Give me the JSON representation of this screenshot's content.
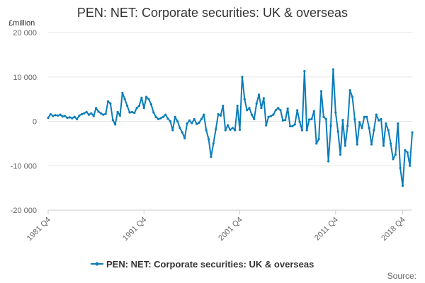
{
  "chart_data": {
    "type": "line",
    "title": "PEN: NET: Corporate securities: UK & overseas",
    "unit_label": "£million",
    "ylim": [
      -20000,
      20000
    ],
    "y_ticks": [
      20000,
      10000,
      0,
      -10000,
      -20000
    ],
    "y_tick_labels": [
      "20 000",
      "10 000",
      "0",
      "-10 000",
      "-20 000"
    ],
    "x_tick_labels": [
      "1981 Q4",
      "1991 Q4",
      "2001 Q4",
      "2011 Q4",
      "2018 Q4"
    ],
    "x_tick_index": [
      0,
      40,
      80,
      120,
      148
    ],
    "grid": "horizontal",
    "legend_position": "bottom",
    "credit": "Source:",
    "series": [
      {
        "name": "PEN: NET: Corporate securities: UK & overseas",
        "color": "#0a7cb9",
        "values": [
          800,
          1600,
          1200,
          1400,
          1300,
          1500,
          1100,
          1200,
          800,
          900,
          700,
          1000,
          500,
          1300,
          1600,
          1800,
          2100,
          1500,
          1800,
          1200,
          3000,
          2200,
          1800,
          1500,
          1700,
          4500,
          4000,
          300,
          -700,
          2100,
          1300,
          6400,
          5000,
          3500,
          2000,
          2100,
          1900,
          3000,
          3500,
          5300,
          3000,
          5500,
          5000,
          3800,
          2000,
          1000,
          500,
          700,
          1000,
          1500,
          600,
          0,
          -2000,
          1000,
          0,
          -1500,
          -2500,
          -3800,
          -500,
          200,
          -400,
          500,
          -600,
          -300,
          500,
          1500,
          -2000,
          -4000,
          -8000,
          -5000,
          -1800,
          1600,
          1300,
          3500,
          -2000,
          -900,
          -1900,
          -1500,
          -2000,
          3500,
          -1900,
          10000,
          5000,
          2500,
          3000,
          1500,
          500,
          4000,
          6000,
          3000,
          5200,
          -900,
          1000,
          1200,
          1500,
          2500,
          3000,
          2500,
          200,
          300,
          2900,
          -1100,
          -1100,
          -700,
          2500,
          -100,
          -2000,
          11300,
          -2000,
          400,
          500,
          2300,
          -5000,
          -4000,
          6800,
          1000,
          500,
          -9000,
          -1000,
          11700,
          2000,
          -2300,
          -7500,
          300,
          -5500,
          -1000,
          7000,
          5500,
          500,
          -5200,
          -200,
          -1500,
          1000,
          1000,
          -1500,
          -5200,
          -2000,
          1500,
          200,
          500,
          -5500,
          -500,
          -2000,
          -5000,
          -8500,
          -7500,
          -500,
          -10500,
          -14500,
          -6500,
          -7000,
          -10000,
          -2500
        ]
      }
    ]
  }
}
